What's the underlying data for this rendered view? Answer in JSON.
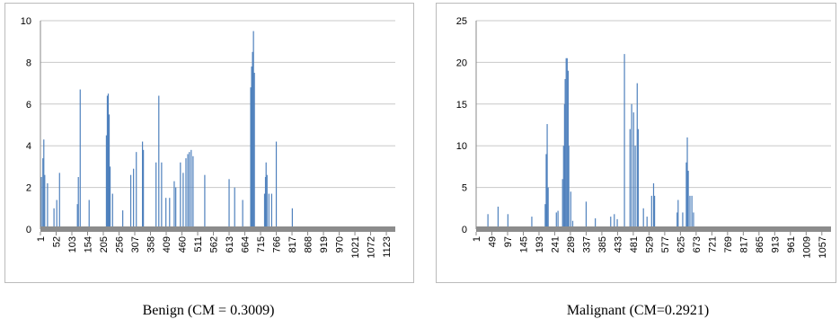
{
  "chart_data": [
    {
      "type": "bar",
      "caption": "Benign (CM = 0.3009)",
      "color": "#4f81bd",
      "grid": true,
      "xlim": [
        1,
        1152
      ],
      "xticks": [
        1,
        52,
        103,
        154,
        205,
        256,
        307,
        358,
        409,
        460,
        511,
        562,
        613,
        664,
        715,
        766,
        817,
        868,
        919,
        970,
        1021,
        1072,
        1123
      ],
      "ylim": [
        0,
        10
      ],
      "yticks": [
        0,
        2,
        4,
        6,
        8,
        10
      ],
      "x": [
        4,
        9,
        12,
        15,
        24,
        45,
        54,
        63,
        121,
        124,
        130,
        159,
        215,
        218,
        221,
        224,
        227,
        235,
        268,
        294,
        303,
        312,
        332,
        335,
        376,
        385,
        394,
        408,
        420,
        435,
        440,
        455,
        464,
        473,
        479,
        484,
        490,
        496,
        534,
        613,
        631,
        657,
        683,
        686,
        689,
        692,
        695,
        728,
        731,
        733,
        736,
        742,
        751,
        766,
        818
      ],
      "values": [
        2.5,
        3.4,
        4.3,
        2.6,
        2.2,
        1,
        1.4,
        2.7,
        1.2,
        2.5,
        6.7,
        1.4,
        4.5,
        6.4,
        6.5,
        5.5,
        3,
        1.7,
        0.9,
        2.6,
        2.9,
        3.7,
        4.2,
        3.8,
        3.2,
        6.4,
        3.2,
        1.5,
        1.5,
        2.3,
        2,
        3.2,
        2.7,
        3.4,
        3.6,
        3.7,
        3.8,
        3.5,
        2.6,
        2.4,
        2,
        1.4,
        6.8,
        7.8,
        8.5,
        9.5,
        7.5,
        1.7,
        2.5,
        3.2,
        2.6,
        1.7,
        1.7,
        4.2,
        1
      ]
    },
    {
      "type": "bar",
      "caption": "Malignant (CM=0.2921)",
      "color": "#4f81bd",
      "grid": true,
      "xlim": [
        1,
        1085
      ],
      "xticks": [
        1,
        49,
        97,
        145,
        193,
        241,
        289,
        337,
        385,
        433,
        481,
        529,
        577,
        625,
        673,
        721,
        769,
        817,
        865,
        913,
        961,
        1009,
        1057
      ],
      "ylim": [
        0,
        25
      ],
      "yticks": [
        0,
        5,
        10,
        15,
        20,
        25
      ],
      "x": [
        37,
        68,
        98,
        171,
        212,
        215,
        218,
        221,
        246,
        251,
        265,
        268,
        271,
        273,
        276,
        279,
        282,
        284,
        290,
        296,
        337,
        365,
        412,
        423,
        432,
        454,
        471,
        476,
        482,
        487,
        493,
        496,
        512,
        523,
        537,
        543,
        546,
        615,
        618,
        632,
        643,
        646,
        649,
        654,
        660,
        665
      ],
      "values": [
        1.8,
        2.7,
        1.8,
        1.5,
        3,
        9,
        12.6,
        5,
        2,
        2.2,
        6,
        10,
        15,
        18,
        20.5,
        20.5,
        19,
        10,
        4.5,
        1,
        3.3,
        1.3,
        1.5,
        1.8,
        1.2,
        21,
        12,
        15,
        14,
        10,
        17.5,
        12,
        2.5,
        1.5,
        4,
        5.5,
        4,
        2,
        3.5,
        2,
        8,
        11,
        7,
        4,
        4,
        2
      ]
    }
  ]
}
